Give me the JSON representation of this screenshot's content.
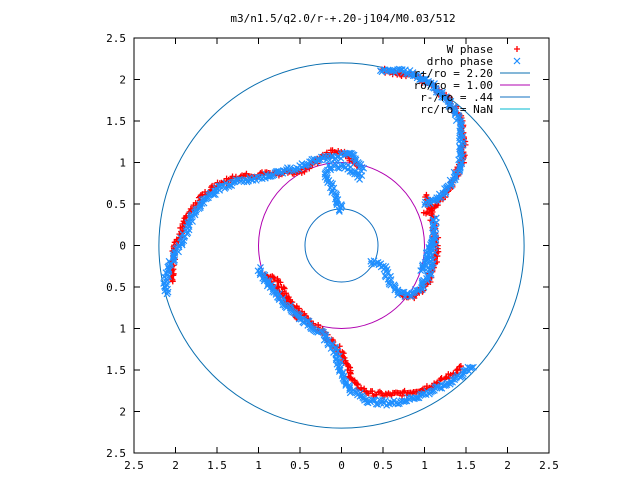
{
  "chart_data": {
    "type": "scatter",
    "title": "m3/n1.5/q2.0/r-+.20-j104/M0.03/512",
    "xlabel": "",
    "ylabel": "",
    "xlim": [
      2.5,
      -2.5
    ],
    "ylim": [
      -2.5,
      2.5
    ],
    "x_ticks": [
      "2.5",
      "2",
      "1.5",
      "1",
      "0.5",
      "0",
      "0.5",
      "1",
      "1.5",
      "2",
      "2.5"
    ],
    "y_ticks": [
      "2.5",
      "2",
      "1.5",
      "1",
      "0.5",
      "0",
      "0.5",
      "1",
      "1.5",
      "2",
      "2.5"
    ],
    "grid": false,
    "legend_position": "top-right",
    "series": [
      {
        "name": "W phase",
        "marker": "plus",
        "color": "#ff0000",
        "arms": [
          [
            [
              0.2,
              0.95
            ],
            [
              0.05,
              1.1
            ],
            [
              -0.1,
              1.13
            ],
            [
              -0.25,
              1.06
            ],
            [
              -0.38,
              0.95
            ],
            [
              -0.52,
              0.88
            ],
            [
              -0.7,
              0.87
            ],
            [
              -0.88,
              0.87
            ],
            [
              -1.05,
              0.85
            ],
            [
              -1.25,
              0.82
            ],
            [
              -1.45,
              0.76
            ],
            [
              -1.65,
              0.62
            ],
            [
              -1.85,
              0.35
            ],
            [
              -1.98,
              0.05
            ],
            [
              -2.05,
              -0.25
            ],
            [
              -2.05,
              -0.45
            ]
          ],
          [
            [
              1.0,
              0.6
            ],
            [
              1.08,
              0.4
            ],
            [
              1.12,
              0.2
            ],
            [
              1.15,
              0.0
            ],
            [
              1.12,
              -0.25
            ],
            [
              1.03,
              -0.48
            ],
            [
              0.88,
              -0.62
            ],
            [
              0.72,
              -0.58
            ]
          ],
          [
            [
              0.99,
              0.4
            ],
            [
              1.08,
              0.44
            ],
            [
              1.2,
              0.55
            ],
            [
              1.34,
              0.75
            ],
            [
              1.45,
              1.0
            ],
            [
              1.47,
              1.25
            ],
            [
              1.42,
              1.55
            ],
            [
              1.3,
              1.75
            ],
            [
              1.05,
              1.95
            ],
            [
              0.85,
              2.05
            ],
            [
              0.62,
              2.08
            ],
            [
              0.46,
              2.12
            ]
          ],
          [
            [
              -0.95,
              -0.35
            ],
            [
              -0.82,
              -0.48
            ],
            [
              -0.68,
              -0.64
            ],
            [
              -0.5,
              -0.8
            ],
            [
              -0.22,
              -1.05
            ],
            [
              0.02,
              -1.3
            ],
            [
              0.1,
              -1.55
            ],
            [
              0.18,
              -1.7
            ],
            [
              0.35,
              -1.78
            ],
            [
              0.55,
              -1.8
            ],
            [
              0.78,
              -1.78
            ],
            [
              1.0,
              -1.72
            ],
            [
              1.22,
              -1.62
            ],
            [
              1.38,
              -1.52
            ],
            [
              1.46,
              -1.45
            ]
          ],
          [
            [
              -0.93,
              -0.38
            ],
            [
              -0.8,
              -0.4
            ],
            [
              -0.7,
              -0.55
            ],
            [
              -0.6,
              -0.75
            ],
            [
              -0.5,
              -0.9
            ]
          ]
        ]
      },
      {
        "name": "drho phase",
        "marker": "x",
        "color": "#1f8fff",
        "arms": [
          [
            [
              0.25,
              0.9
            ],
            [
              0.15,
              1.08
            ],
            [
              0.05,
              1.1
            ],
            [
              -0.05,
              1.06
            ],
            [
              -0.2,
              1.05
            ],
            [
              -0.35,
              1.02
            ],
            [
              -0.5,
              0.95
            ],
            [
              -0.68,
              0.9
            ],
            [
              -0.85,
              0.85
            ],
            [
              -1.05,
              0.8
            ],
            [
              -1.25,
              0.78
            ],
            [
              -1.45,
              0.7
            ],
            [
              -1.65,
              0.55
            ],
            [
              -1.82,
              0.3
            ],
            [
              -1.95,
              0.0
            ],
            [
              -2.05,
              -0.2
            ],
            [
              -2.12,
              -0.4
            ],
            [
              -2.1,
              -0.6
            ]
          ],
          [
            [
              0.0,
              0.42
            ],
            [
              -0.05,
              0.55
            ],
            [
              -0.12,
              0.7
            ],
            [
              -0.18,
              0.85
            ],
            [
              -0.12,
              0.97
            ],
            [
              0.05,
              0.95
            ],
            [
              0.18,
              0.88
            ],
            [
              0.25,
              0.8
            ]
          ],
          [
            [
              0.35,
              -0.2
            ],
            [
              0.5,
              -0.25
            ],
            [
              0.6,
              -0.45
            ],
            [
              0.68,
              -0.58
            ],
            [
              0.82,
              -0.6
            ],
            [
              0.95,
              -0.52
            ],
            [
              1.05,
              -0.35
            ],
            [
              1.1,
              -0.1
            ],
            [
              1.12,
              0.15
            ],
            [
              1.12,
              0.35
            ]
          ],
          [
            [
              1.0,
              0.5
            ],
            [
              1.15,
              0.55
            ],
            [
              1.28,
              0.7
            ],
            [
              1.4,
              0.9
            ],
            [
              1.45,
              1.1
            ],
            [
              1.45,
              1.35
            ],
            [
              1.38,
              1.6
            ],
            [
              1.25,
              1.78
            ],
            [
              1.05,
              1.98
            ],
            [
              0.82,
              2.08
            ],
            [
              0.6,
              2.12
            ],
            [
              0.45,
              2.12
            ]
          ],
          [
            [
              -1.0,
              -0.28
            ],
            [
              -0.85,
              -0.5
            ],
            [
              -0.7,
              -0.68
            ],
            [
              -0.48,
              -0.88
            ],
            [
              -0.22,
              -1.08
            ],
            [
              -0.05,
              -1.3
            ],
            [
              0.0,
              -1.55
            ],
            [
              0.12,
              -1.75
            ],
            [
              0.35,
              -1.88
            ],
            [
              0.6,
              -1.9
            ],
            [
              0.82,
              -1.85
            ],
            [
              1.05,
              -1.77
            ],
            [
              1.25,
              -1.68
            ],
            [
              1.45,
              -1.55
            ],
            [
              1.6,
              -1.45
            ]
          ],
          [
            [
              0.95,
              -0.3
            ],
            [
              1.05,
              -0.1
            ],
            [
              1.1,
              0.1
            ]
          ]
        ]
      }
    ],
    "circles": [
      {
        "name": "r+/ro = 2.20",
        "radius": 2.2,
        "color": "#0a6fb0"
      },
      {
        "name": "ro/ro = 1.00",
        "radius": 1.0,
        "color": "#b000b0"
      },
      {
        "name": "r-/ro = .44",
        "radius": 0.44,
        "color": "#1070c0"
      },
      {
        "name": "rc/ro = NaN",
        "radius": null,
        "color": "#00b8d0"
      }
    ],
    "legend": [
      {
        "label": "W phase",
        "marker": "plus",
        "color": "#ff0000"
      },
      {
        "label": "drho phase",
        "marker": "x",
        "color": "#1f8fff"
      },
      {
        "label": "r+/ro = 2.20",
        "marker": "line",
        "color": "#0a6fb0"
      },
      {
        "label": "ro/ro = 1.00",
        "marker": "line",
        "color": "#b000b0"
      },
      {
        "label": "r-/ro = .44",
        "marker": "line",
        "color": "#1070c0"
      },
      {
        "label": "rc/ro = NaN",
        "marker": "line",
        "color": "#00b8d0"
      }
    ]
  }
}
